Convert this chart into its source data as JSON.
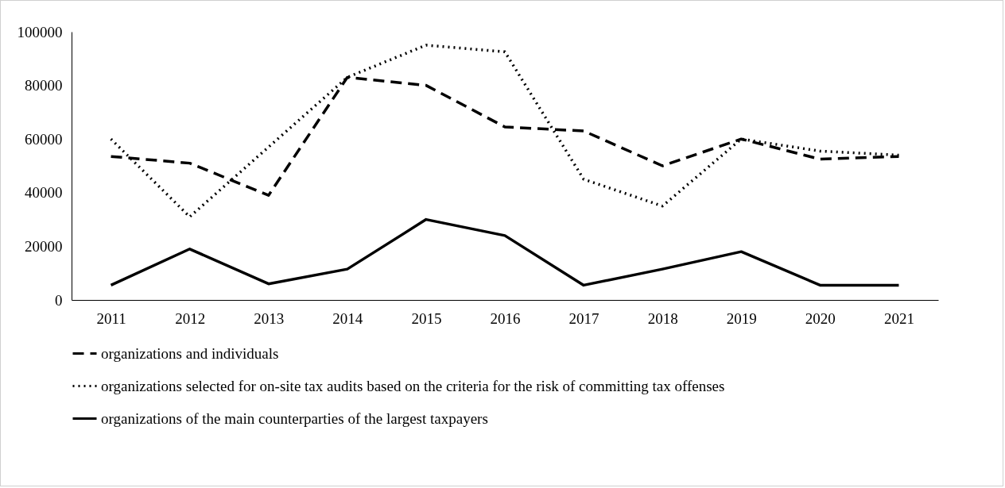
{
  "chart_data": {
    "type": "line",
    "categories": [
      "2011",
      "2012",
      "2013",
      "2014",
      "2015",
      "2016",
      "2017",
      "2018",
      "2019",
      "2020",
      "2021"
    ],
    "series": [
      {
        "name": "organizations and individuals",
        "color": "#000000",
        "line_style": "dashed",
        "values": [
          53500,
          51000,
          39000,
          83000,
          80000,
          64500,
          63000,
          50000,
          60000,
          52500,
          53500
        ]
      },
      {
        "name": "organizations selected for on-site tax audits based on the criteria for the risk of committing tax offenses",
        "color": "#000000",
        "line_style": "dotted",
        "values": [
          60000,
          31000,
          57000,
          83000,
          95000,
          92500,
          45000,
          35000,
          60000,
          55500,
          54000
        ]
      },
      {
        "name": "organizations of the main counterparties of the largest taxpayers",
        "color": "#000000",
        "line_style": "solid",
        "values": [
          5500,
          19000,
          6000,
          11500,
          30000,
          24000,
          5500,
          11500,
          18000,
          5500,
          5500
        ]
      }
    ],
    "ylim": [
      0,
      100000
    ],
    "yticks": [
      0,
      20000,
      40000,
      60000,
      80000,
      100000
    ],
    "grid": false,
    "legend": "bottom",
    "marker": "none"
  }
}
